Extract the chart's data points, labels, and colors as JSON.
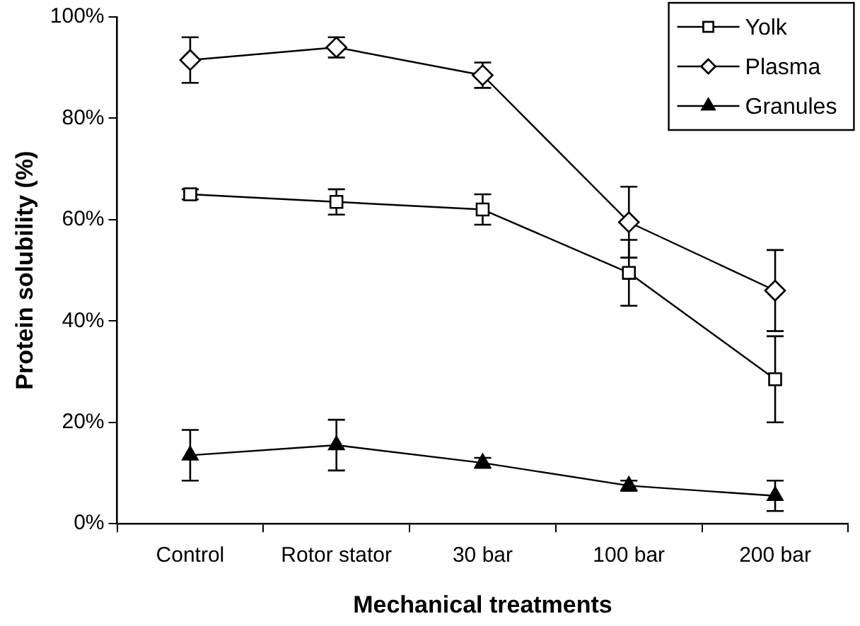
{
  "chart_data": {
    "type": "line",
    "xlabel": "Mechanical treatments",
    "ylabel": "Protein solubility (%)",
    "categories": [
      "Control",
      "Rotor stator",
      "30 bar",
      "100 bar",
      "200 bar"
    ],
    "ylim": [
      0,
      100
    ],
    "yticks": [
      {
        "value": 0,
        "label": "0%"
      },
      {
        "value": 20,
        "label": "20%"
      },
      {
        "value": 40,
        "label": "40%"
      },
      {
        "value": 60,
        "label": "60%"
      },
      {
        "value": 80,
        "label": "80%"
      },
      {
        "value": 100,
        "label": "100%"
      }
    ],
    "grid": false,
    "legend": "top right",
    "line_style": "solid",
    "series": [
      {
        "name": "Yolk",
        "color": "#000000",
        "marker": "square",
        "values": [
          65,
          63.5,
          62,
          49.5,
          28.5
        ],
        "errors": [
          1,
          2.5,
          3,
          6.5,
          8.5
        ]
      },
      {
        "name": "Plasma",
        "color": "#000000",
        "marker": "diamond",
        "values": [
          91.5,
          94,
          88.5,
          59.5,
          46
        ],
        "errors": [
          4.5,
          2,
          2.5,
          7,
          8
        ]
      },
      {
        "name": "Granules",
        "color": "#000000",
        "marker": "triangle",
        "values": [
          13.5,
          15.5,
          12,
          7.5,
          5.5
        ],
        "errors": [
          5,
          5,
          1,
          1,
          3
        ]
      }
    ]
  }
}
